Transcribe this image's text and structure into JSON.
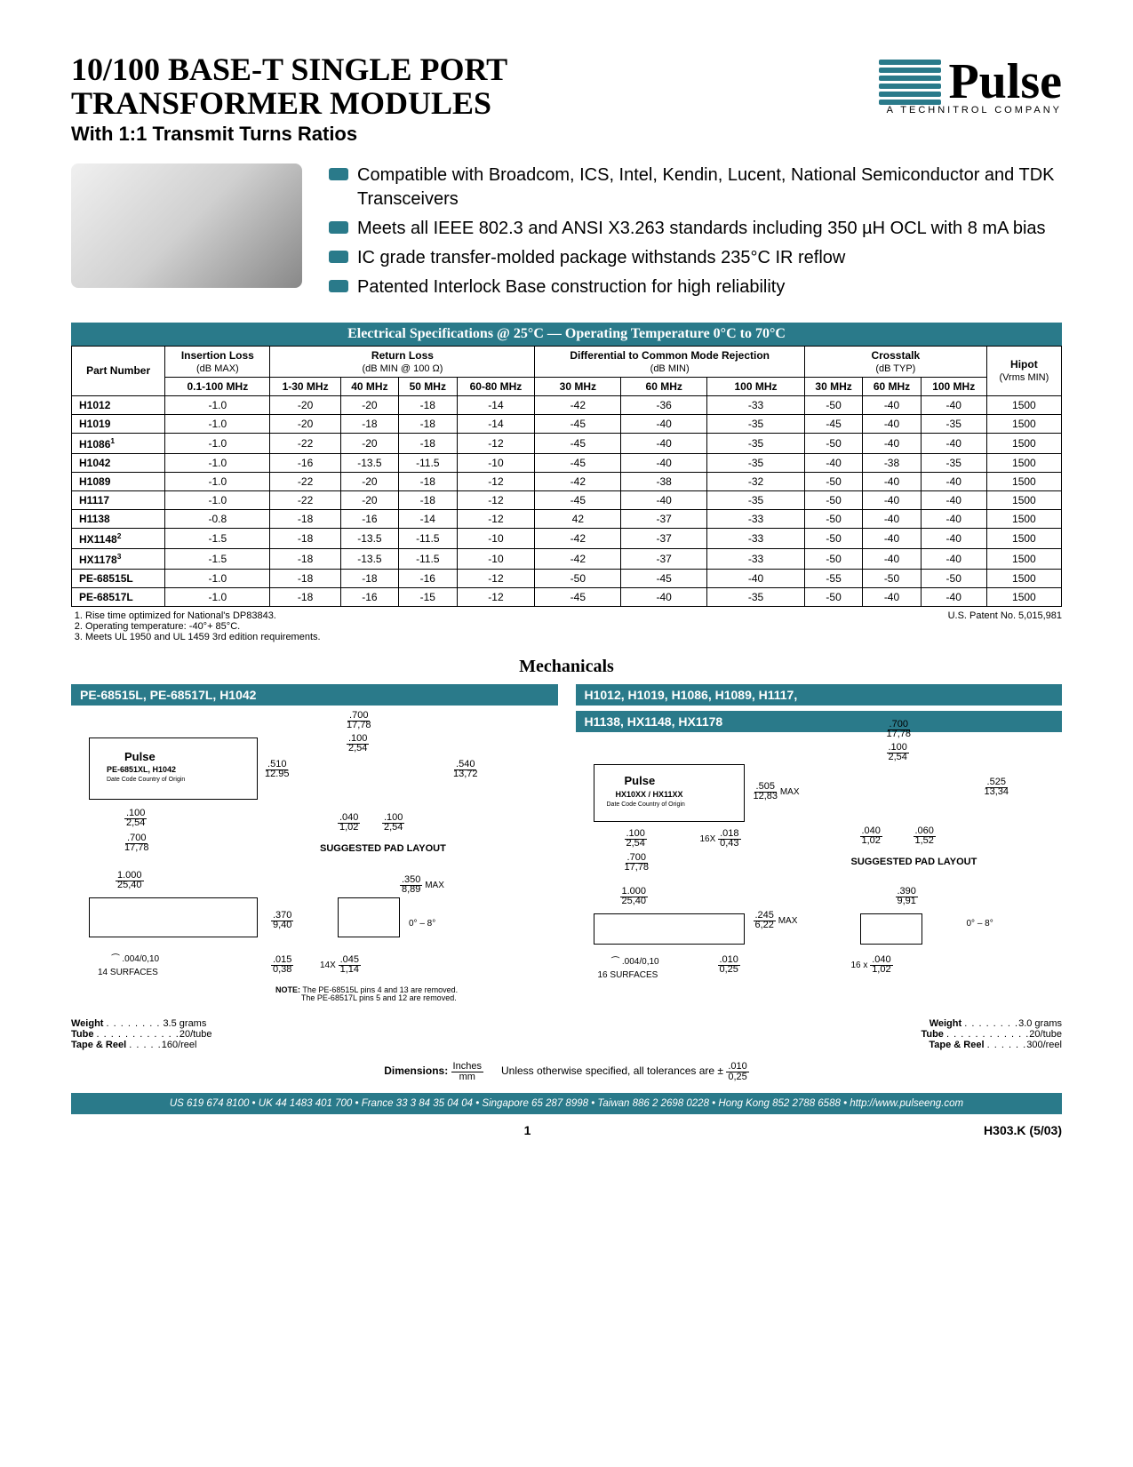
{
  "header": {
    "title_l1": "10/100 BASE-T SINGLE PORT",
    "title_l2": "TRANSFORMER MODULES",
    "subtitle": "With 1:1 Transmit Turns Ratios",
    "logo_text": "Pulse",
    "logo_sub": "A TECHNITROL COMPANY"
  },
  "features": [
    "Compatible with Broadcom, ICS, Intel, Kendin, Lucent, National Semiconductor and TDK Transceivers",
    "Meets all IEEE 802.3 and ANSI X3.263 standards including 350 µH OCL with 8 mA bias",
    "IC grade transfer-molded package withstands 235°C IR reflow",
    "Patented Interlock Base construction for high reliability"
  ],
  "spec_header": "Electrical Specifications @ 25°C — Operating Temperature 0°C to 70°C",
  "table": {
    "cols": {
      "part": "Part Number",
      "il": {
        "l1": "Insertion Loss",
        "l2": "(dB MAX)",
        "sub": "0.1-100 MHz"
      },
      "rl": {
        "l1": "Return Loss",
        "l2": "(dB MIN @ 100 Ω)",
        "subs": [
          "1-30 MHz",
          "40 MHz",
          "50 MHz",
          "60-80 MHz"
        ]
      },
      "dcmr": {
        "l1": "Differential to Common Mode Rejection",
        "l2": "(dB MIN)",
        "subs": [
          "30 MHz",
          "60 MHz",
          "100 MHz"
        ]
      },
      "ct": {
        "l1": "Crosstalk",
        "l2": "(dB TYP)",
        "subs": [
          "30 MHz",
          "60 MHz",
          "100 MHz"
        ]
      },
      "hipot": {
        "l1": "Hipot",
        "l2": "(Vrms MIN)"
      }
    },
    "rows": [
      {
        "part": "H1012",
        "il": "-1.0",
        "rl": [
          "-20",
          "-20",
          "-18",
          "-14"
        ],
        "dcmr": [
          "-42",
          "-36",
          "-33"
        ],
        "ct": [
          "-50",
          "-40",
          "-40"
        ],
        "hipot": "1500"
      },
      {
        "part": "H1019",
        "il": "-1.0",
        "rl": [
          "-20",
          "-18",
          "-18",
          "-14"
        ],
        "dcmr": [
          "-45",
          "-40",
          "-35"
        ],
        "ct": [
          "-45",
          "-40",
          "-35"
        ],
        "hipot": "1500"
      },
      {
        "part": "H1086",
        "sup": "1",
        "il": "-1.0",
        "rl": [
          "-22",
          "-20",
          "-18",
          "-12"
        ],
        "dcmr": [
          "-45",
          "-40",
          "-35"
        ],
        "ct": [
          "-50",
          "-40",
          "-40"
        ],
        "hipot": "1500"
      },
      {
        "part": "H1042",
        "il": "-1.0",
        "rl": [
          "-16",
          "-13.5",
          "-11.5",
          "-10"
        ],
        "dcmr": [
          "-45",
          "-40",
          "-35"
        ],
        "ct": [
          "-40",
          "-38",
          "-35"
        ],
        "hipot": "1500"
      },
      {
        "part": "H1089",
        "il": "-1.0",
        "rl": [
          "-22",
          "-20",
          "-18",
          "-12"
        ],
        "dcmr": [
          "-42",
          "-38",
          "-32"
        ],
        "ct": [
          "-50",
          "-40",
          "-40"
        ],
        "hipot": "1500"
      },
      {
        "part": "H1117",
        "il": "-1.0",
        "rl": [
          "-22",
          "-20",
          "-18",
          "-12"
        ],
        "dcmr": [
          "-45",
          "-40",
          "-35"
        ],
        "ct": [
          "-50",
          "-40",
          "-40"
        ],
        "hipot": "1500"
      },
      {
        "part": "H1138",
        "il": "-0.8",
        "rl": [
          "-18",
          "-16",
          "-14",
          "-12"
        ],
        "dcmr": [
          "42",
          "-37",
          "-33"
        ],
        "ct": [
          "-50",
          "-40",
          "-40"
        ],
        "hipot": "1500"
      },
      {
        "part": "HX1148",
        "sup": "2",
        "il": "-1.5",
        "rl": [
          "-18",
          "-13.5",
          "-11.5",
          "-10"
        ],
        "dcmr": [
          "-42",
          "-37",
          "-33"
        ],
        "ct": [
          "-50",
          "-40",
          "-40"
        ],
        "hipot": "1500"
      },
      {
        "part": "HX1178",
        "sup": "3",
        "il": "-1.5",
        "rl": [
          "-18",
          "-13.5",
          "-11.5",
          "-10"
        ],
        "dcmr": [
          "-42",
          "-37",
          "-33"
        ],
        "ct": [
          "-50",
          "-40",
          "-40"
        ],
        "hipot": "1500"
      },
      {
        "part": "PE-68515L",
        "il": "-1.0",
        "rl": [
          "-18",
          "-18",
          "-16",
          "-12"
        ],
        "dcmr": [
          "-50",
          "-45",
          "-40"
        ],
        "ct": [
          "-55",
          "-50",
          "-50"
        ],
        "hipot": "1500"
      },
      {
        "part": "PE-68517L",
        "il": "-1.0",
        "rl": [
          "-18",
          "-16",
          "-15",
          "-12"
        ],
        "dcmr": [
          "-45",
          "-40",
          "-35"
        ],
        "ct": [
          "-50",
          "-40",
          "-40"
        ],
        "hipot": "1500"
      }
    ]
  },
  "footnotes": {
    "notes": [
      "Rise time optimized for National's DP83843.",
      "Operating temperature:  -40°+ 85°C.",
      "Meets UL 1950 and UL 1459 3rd edition requirements."
    ],
    "patent": "U.S. Patent No. 5,015,981"
  },
  "mechanicals_title": "Mechanicals",
  "mech_left": {
    "header": "PE-68515L, PE-68517L, H1042",
    "part_label": "PE-6851XL, H1042",
    "date_label": "Date Code     Country of Origin",
    "dims": {
      "d700": ".700",
      "d700mm": "17,78",
      "d100": ".100",
      "d100mm": "2,54",
      "d510": ".510",
      "d510mm": "12.95",
      "d540": ".540",
      "d540mm": "13,72",
      "d040": ".040",
      "d040mm": "1,02",
      "d1000": "1.000",
      "d1000mm": "25,40",
      "d370": ".370",
      "d370mm": "9,40",
      "d015": ".015",
      "d015mm": "0,38",
      "d350": ".350",
      "d350mm": "8,89",
      "d350sfx": "MAX",
      "angle": "0° – 8°",
      "d045": ".045",
      "d045mm": "1,14",
      "d045pfx": "14X",
      "surfaces": "14 SURFACES",
      "flat": ".004/0,10"
    },
    "pad_label": "SUGGESTED PAD LAYOUT",
    "note_label": "NOTE:",
    "note1": "The PE-68515L pins 4 and 13 are removed.",
    "note2": "The PE-68517L pins 5 and 12 are removed.",
    "weight": "3.5 grams",
    "tube": "20/tube",
    "reel": "160/reel"
  },
  "mech_right": {
    "header1": "H1012, H1019, H1086, H1089, H1117,",
    "header2": "H1138, HX1148, HX1178",
    "part_label": "HX10XX / HX11XX",
    "date_label": "Date Code          Country of Origin",
    "dims": {
      "d700": ".700",
      "d700mm": "17,78",
      "d100": ".100",
      "d100mm": "2,54",
      "d505": ".505",
      "d505mm": "12,83",
      "d505sfx": "MAX",
      "d525": ".525",
      "d525mm": "13,34",
      "d040": ".040",
      "d040mm": "1,02",
      "d060": ".060",
      "d060mm": "1,52",
      "d018": ".018",
      "d018mm": "0,43",
      "d018pfx": "16X",
      "d1000": "1.000",
      "d1000mm": "25,40",
      "d245": ".245",
      "d245mm": "6,22",
      "d245sfx": "MAX",
      "d010": ".010",
      "d010mm": "0,25",
      "d390": ".390",
      "d390mm": "9,91",
      "angle": "0° – 8°",
      "d040b": ".040",
      "d040bmm": "1,02",
      "d040bpfx": "16 x",
      "surfaces": "16 SURFACES",
      "flat": ".004/0,10"
    },
    "pad_label": "SUGGESTED PAD LAYOUT",
    "weight": "3.0 grams",
    "tube": "20/tube",
    "reel": "300/reel"
  },
  "dim_legend": {
    "label": "Dimensions:",
    "inches": "Inches",
    "mm": "mm",
    "tol_text": "Unless otherwise specified, all tolerances are ±",
    "tol_in": ".010",
    "tol_mm": "0,25"
  },
  "labels": {
    "weight": "Weight",
    "tube": "Tube",
    "reel": "Tape & Reel"
  },
  "footer_bar": "US 619 674 8100 • UK 44 1483 401 700 • France 33 3 84 35 04 04 • Singapore 65 287 8998 • Taiwan 886 2 2698 0228 • Hong Kong 852 2788 6588 • http://www.pulseeng.com",
  "page": {
    "num": "1",
    "code": "H303.K (5/03)"
  }
}
